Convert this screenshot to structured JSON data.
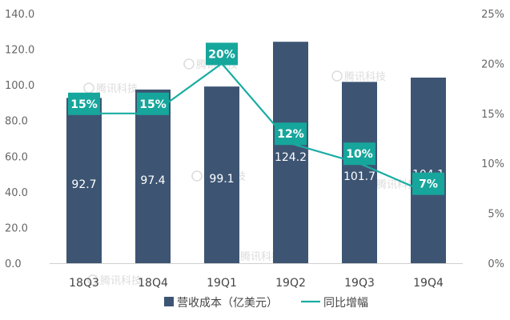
{
  "chart_data": {
    "type": "bar",
    "categories": [
      "18Q3",
      "18Q4",
      "19Q1",
      "19Q2",
      "19Q3",
      "19Q4"
    ],
    "series": [
      {
        "name": "营收成本（亿美元）",
        "type": "bar",
        "axis": "left",
        "values": [
          92.7,
          97.4,
          99.1,
          124.2,
          101.7,
          104.1
        ],
        "labels": [
          "92.7",
          "97.4",
          "99.1",
          "124.2",
          "101.7",
          "104.1"
        ]
      },
      {
        "name": "同比增幅",
        "type": "line",
        "axis": "right",
        "values": [
          15,
          15,
          20,
          12,
          10,
          7
        ],
        "labels": [
          "15%",
          "15%",
          "20%",
          "12%",
          "10%",
          "7%"
        ]
      }
    ],
    "y_left": {
      "min": 0,
      "max": 140,
      "ticks": [
        "0.0",
        "20.0",
        "40.0",
        "60.0",
        "80.0",
        "100.0",
        "120.0",
        "140.0"
      ]
    },
    "y_right": {
      "min": 0,
      "max": 25,
      "ticks": [
        "0%",
        "5%",
        "10%",
        "15%",
        "20%",
        "25%"
      ]
    },
    "legend_position": "bottom",
    "grid": false,
    "colors": {
      "bar": "#3d5573",
      "line": "#1aada3",
      "label_box": "#16a69c"
    },
    "watermark_icon": "tencent-logo-icon",
    "watermark": "腾讯科技"
  }
}
